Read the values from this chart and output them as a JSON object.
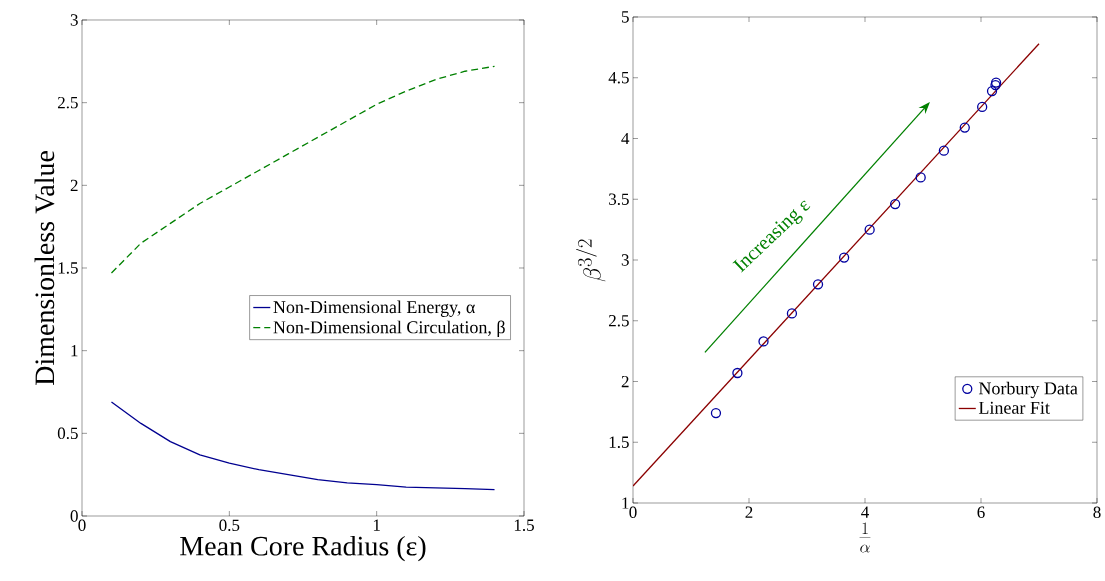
{
  "chart_data": [
    {
      "type": "line",
      "xlabel": "Mean Core Radius (ε)",
      "ylabel": "Dimensionless Value",
      "x": [
        0.1,
        0.2,
        0.3,
        0.4,
        0.5,
        0.6,
        0.7,
        0.8,
        0.9,
        1.0,
        1.1,
        1.2,
        1.3,
        1.4
      ],
      "series": [
        {
          "name": "Non-Dimensional Energy, α",
          "color": "#000090",
          "line_style": "solid",
          "values": [
            0.69,
            0.56,
            0.45,
            0.37,
            0.32,
            0.28,
            0.25,
            0.22,
            0.2,
            0.19,
            0.175,
            0.17,
            0.165,
            0.16
          ]
        },
        {
          "name": "Non-Dimensional Circulation, β",
          "color": "#008000",
          "line_style": "dashed",
          "values": [
            1.47,
            1.65,
            1.77,
            1.89,
            1.99,
            2.09,
            2.19,
            2.29,
            2.39,
            2.49,
            2.57,
            2.64,
            2.69,
            2.72
          ]
        }
      ],
      "xlim": [
        0,
        1.5
      ],
      "ylim": [
        0,
        3
      ],
      "xticks": [
        0,
        0.5,
        1,
        1.5
      ],
      "yticks": [
        0,
        0.5,
        1,
        1.5,
        2,
        2.5,
        3
      ],
      "grid": false,
      "legend": "right"
    },
    {
      "type": "scatter",
      "xlabel": "\\frac{1}{\\alpha}",
      "ylabel": "\\beta^{3/2}",
      "series": [
        {
          "name": "Norbury Data",
          "color": "#0000a0",
          "marker": "circle",
          "x": [
            1.43,
            1.8,
            2.25,
            2.74,
            3.19,
            3.64,
            4.08,
            4.52,
            4.96,
            5.36,
            5.72,
            6.02,
            6.19,
            6.25,
            6.26
          ],
          "values": [
            1.74,
            2.07,
            2.33,
            2.56,
            2.8,
            3.02,
            3.25,
            3.46,
            3.68,
            3.9,
            4.09,
            4.26,
            4.39,
            4.44,
            4.46
          ]
        },
        {
          "name": "Linear Fit",
          "type": "line",
          "color": "#8b0000",
          "x": [
            0,
            7
          ],
          "values": [
            1.14,
            4.78
          ]
        }
      ],
      "annotations": [
        "Increasing  ε"
      ],
      "xlim": [
        0,
        8
      ],
      "ylim": [
        1,
        5
      ],
      "xticks": [
        0,
        2,
        4,
        6,
        8
      ],
      "yticks": [
        1,
        1.5,
        2,
        2.5,
        3,
        3.5,
        4,
        4.5,
        5
      ],
      "grid": false,
      "legend": "bottom right"
    }
  ]
}
